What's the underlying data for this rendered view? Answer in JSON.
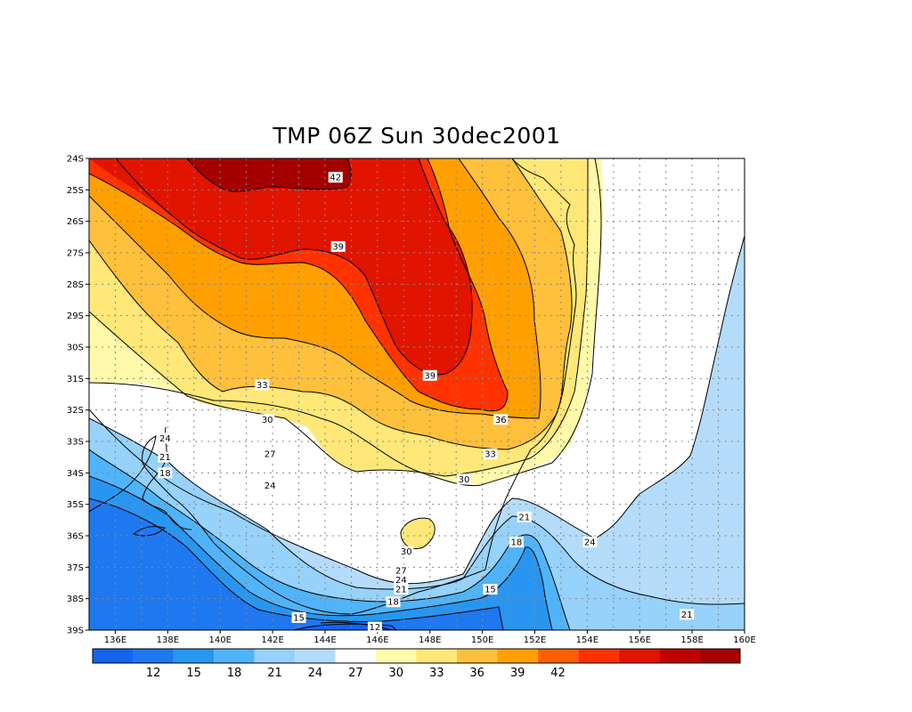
{
  "title": "TMP 06Z Sun 30dec2001",
  "lat_labels": [
    "24S",
    "25S",
    "26S",
    "27S",
    "28S",
    "29S",
    "30S",
    "31S",
    "32S",
    "33S",
    "34S",
    "35S",
    "36S",
    "37S",
    "38S",
    "39S"
  ],
  "lon_labels": [
    "136E",
    "138E",
    "140E",
    "142E",
    "144E",
    "146E",
    "148E",
    "150E",
    "152E",
    "154E",
    "156E",
    "158E",
    "160E"
  ],
  "contour_labels": [
    {
      "text": "42",
      "lon": 144.4,
      "lat": -24.6
    },
    {
      "text": "39",
      "lon": 144.5,
      "lat": -26.8
    },
    {
      "text": "39",
      "lon": 148.0,
      "lat": -30.9
    },
    {
      "text": "36",
      "lon": 150.7,
      "lat": -32.3
    },
    {
      "text": "33",
      "lon": 141.6,
      "lat": -31.2
    },
    {
      "text": "33",
      "lon": 150.3,
      "lat": -33.4
    },
    {
      "text": "30",
      "lon": 141.8,
      "lat": -32.3
    },
    {
      "text": "30",
      "lon": 149.3,
      "lat": -34.2
    },
    {
      "text": "30",
      "lon": 147.1,
      "lat": -36.5
    },
    {
      "text": "27",
      "lon": 141.9,
      "lat": -33.4
    },
    {
      "text": "27",
      "lon": 146.9,
      "lat": -37.1
    },
    {
      "text": "24",
      "lon": 137.9,
      "lat": -32.9
    },
    {
      "text": "24",
      "lon": 141.9,
      "lat": -34.4
    },
    {
      "text": "24",
      "lon": 146.9,
      "lat": -37.4
    },
    {
      "text": "24",
      "lon": 154.1,
      "lat": -36.2
    },
    {
      "text": "21",
      "lon": 137.9,
      "lat": -33.5
    },
    {
      "text": "21",
      "lon": 146.9,
      "lat": -37.7
    },
    {
      "text": "21",
      "lon": 151.6,
      "lat": -35.4
    },
    {
      "text": "21",
      "lon": 157.8,
      "lat": -38.5
    },
    {
      "text": "18",
      "lon": 137.9,
      "lat": -34.0
    },
    {
      "text": "18",
      "lon": 146.6,
      "lat": -38.1
    },
    {
      "text": "18",
      "lon": 151.3,
      "lat": -36.2
    },
    {
      "text": "15",
      "lon": 143.0,
      "lat": -38.6
    },
    {
      "text": "15",
      "lon": 150.3,
      "lat": -37.7
    },
    {
      "text": "12",
      "lon": 145.9,
      "lat": -38.9
    }
  ],
  "colorbar": {
    "colors": [
      "#1464f0",
      "#1e78f0",
      "#2896f0",
      "#50b4fa",
      "#96d2fa",
      "#b4dcfa",
      "#ffffff",
      "#fffaaa",
      "#ffe878",
      "#ffc03c",
      "#ffa000",
      "#ff6000",
      "#ff3200",
      "#e11400",
      "#c00000",
      "#a50000"
    ],
    "labels": [
      "12",
      "15",
      "18",
      "21",
      "24",
      "27",
      "30",
      "33",
      "36",
      "39",
      "42"
    ]
  },
  "level_colors": {
    "lt12": "#1464f0",
    "12": "#1e78f0",
    "15": "#2896f0",
    "18": "#50b4fa",
    "21": "#96d2fa",
    "24": "#b4dcfa",
    "27": "#ffffff",
    "30": "#fffaaa",
    "33": "#ffe878",
    "36": "#ffc03c",
    "39": "#ffa000"
  }
}
